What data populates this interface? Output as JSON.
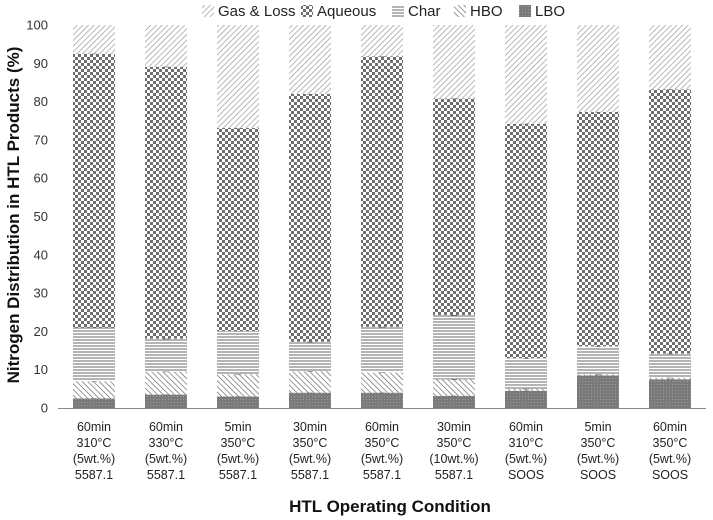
{
  "chart_data": {
    "type": "bar",
    "stacked": true,
    "xlabel": "HTL Operating Condition",
    "ylabel": "Nitrogen Distribution in HTL Products (%)",
    "ylim": [
      0,
      100
    ],
    "yticks": [
      0,
      10,
      20,
      30,
      40,
      50,
      60,
      70,
      80,
      90,
      100
    ],
    "grid": false,
    "legend_position": "top",
    "categories": [
      [
        "60min",
        "310°C",
        "(5wt.%)",
        "5587.1"
      ],
      [
        "60min",
        "330°C",
        "(5wt.%)",
        "5587.1"
      ],
      [
        "5min",
        "350°C",
        "(5wt.%)",
        "5587.1"
      ],
      [
        "30min",
        "350°C",
        "(5wt.%)",
        "5587.1"
      ],
      [
        "60min",
        "350°C",
        "(5wt.%)",
        "5587.1"
      ],
      [
        "30min",
        "350°C",
        "(10wt.%)",
        "5587.1"
      ],
      [
        "60min",
        "310°C",
        "(5wt.%)",
        "SOOS"
      ],
      [
        "5min",
        "350°C",
        "(5wt.%)",
        "SOOS"
      ],
      [
        "60min",
        "350°C",
        "(5wt.%)",
        "SOOS"
      ]
    ],
    "series": [
      {
        "name": "LBO",
        "pattern": "dots-dark",
        "values": [
          2.5,
          3.5,
          3.0,
          4.0,
          4.0,
          3.2,
          4.5,
          8.5,
          7.5
        ]
      },
      {
        "name": "HBO",
        "pattern": "diagonal-lines",
        "values": [
          4.5,
          6.0,
          5.8,
          5.6,
          5.3,
          4.3,
          0.5,
          0.3,
          0.4
        ]
      },
      {
        "name": "Char",
        "pattern": "horizontal-lines",
        "values": [
          14.0,
          8.6,
          11.3,
          7.7,
          11.9,
          16.8,
          8.0,
          7.3,
          6.3
        ]
      },
      {
        "name": "Aqueous",
        "pattern": "checker",
        "values": [
          71.5,
          71.0,
          53.0,
          64.7,
          70.6,
          56.5,
          61.2,
          61.2,
          69.0
        ]
      },
      {
        "name": "Gas & Loss",
        "pattern": "diagonal-lines-light",
        "values": [
          7.5,
          10.9,
          26.9,
          18.0,
          8.2,
          19.2,
          25.8,
          22.7,
          16.8
        ]
      }
    ],
    "legend_order": [
      "Gas & Loss",
      "Aqueous",
      "Char",
      "HBO",
      "LBO"
    ]
  }
}
